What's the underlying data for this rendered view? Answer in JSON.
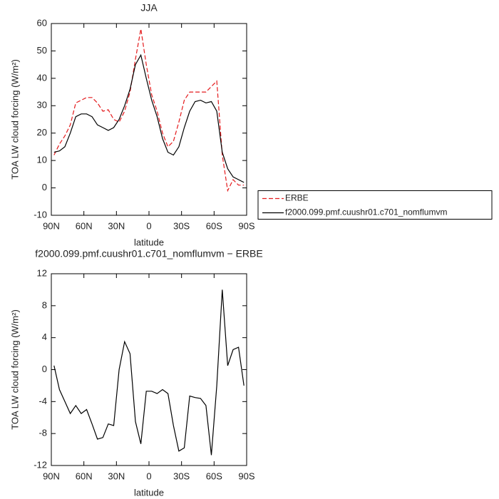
{
  "chart_data": [
    {
      "type": "line",
      "title": "JJA",
      "xlabel": "latitude",
      "ylabel": "TOA LW cloud forcing (W/m²)",
      "x": [
        87.5,
        82.5,
        77.5,
        72.5,
        67.5,
        62.5,
        57.5,
        52.5,
        47.5,
        42.5,
        37.5,
        32.5,
        27.5,
        22.5,
        17.5,
        12.5,
        7.5,
        2.5,
        -2.5,
        -7.5,
        -12.5,
        -17.5,
        -22.5,
        -27.5,
        -32.5,
        -37.5,
        -42.5,
        -47.5,
        -52.5,
        -57.5,
        -62.5,
        -67.5,
        -72.5,
        -77.5,
        -82.5,
        -87.5
      ],
      "series": [
        {
          "name": "ERBE",
          "color": "#e41a1c",
          "line_style": "dashed",
          "values": [
            12,
            16,
            19,
            23,
            31,
            32,
            33,
            33,
            31,
            28,
            28.5,
            25,
            24,
            28,
            35,
            47,
            58,
            45,
            34,
            28,
            20,
            15,
            17,
            24,
            32,
            35,
            35,
            35,
            35,
            37,
            39,
            12,
            -1,
            3,
            1,
            1
          ]
        },
        {
          "name": "f2000.099.pmf.cuushr01.c701_nomflumvm",
          "color": "#000000",
          "line_style": "solid",
          "values": [
            13,
            13.5,
            15,
            20,
            26,
            27,
            27,
            26,
            23,
            22,
            21,
            22,
            25,
            30,
            36,
            45,
            48.5,
            40,
            32,
            26,
            18,
            13,
            12,
            15,
            22,
            28,
            31.5,
            32,
            31,
            31.5,
            28,
            13,
            7,
            4,
            3,
            2
          ]
        }
      ],
      "xlim": [
        90,
        -90
      ],
      "xticks": [
        {
          "value": 90,
          "label": "90N"
        },
        {
          "value": 60,
          "label": "60N"
        },
        {
          "value": 30,
          "label": "30N"
        },
        0,
        {
          "value": -30,
          "label": "30S"
        },
        {
          "value": -60,
          "label": "60S"
        },
        {
          "value": -90,
          "label": "90S"
        }
      ],
      "ylim": [
        -10,
        60
      ],
      "yticks": [
        -10,
        0,
        10,
        20,
        30,
        40,
        50,
        60
      ],
      "legend": "right"
    },
    {
      "type": "line",
      "title": "f2000.099.pmf.cuushr01.c701_nomflumvm − ERBE",
      "xlabel": "latitude",
      "ylabel": "TOA LW cloud forcing (W/m²)",
      "x": [
        87.5,
        82.5,
        77.5,
        72.5,
        67.5,
        62.5,
        57.5,
        52.5,
        47.5,
        42.5,
        37.5,
        32.5,
        27.5,
        22.5,
        17.5,
        12.5,
        7.5,
        2.5,
        -2.5,
        -7.5,
        -12.5,
        -17.5,
        -22.5,
        -27.5,
        -32.5,
        -37.5,
        -42.5,
        -47.5,
        -52.5,
        -57.5,
        -62.5,
        -67.5,
        -72.5,
        -77.5,
        -82.5,
        -87.5
      ],
      "series": [
        {
          "color": "#000000",
          "line_style": "solid",
          "values": [
            0.5,
            -2.5,
            -4,
            -5.5,
            -4.5,
            -5.5,
            -5,
            -6.8,
            -8.7,
            -8.5,
            -6.8,
            -7,
            0,
            3.5,
            2,
            -6.5,
            -9.3,
            -2.7,
            -2.7,
            -3,
            -2.5,
            -3,
            -7,
            -10.2,
            -9.8,
            -3.3,
            -3.5,
            -3.6,
            -4.5,
            -10.7,
            -2,
            10,
            0.5,
            2.5,
            2.8,
            -2
          ]
        }
      ],
      "xlim": [
        90,
        -90
      ],
      "xticks": [
        {
          "value": 90,
          "label": "90N"
        },
        {
          "value": 60,
          "label": "60N"
        },
        {
          "value": 30,
          "label": "30N"
        },
        0,
        {
          "value": -30,
          "label": "30S"
        },
        {
          "value": -60,
          "label": "60S"
        },
        {
          "value": -90,
          "label": "90S"
        }
      ],
      "ylim": [
        -12,
        12
      ],
      "yticks": [
        -12,
        -8,
        -4,
        0,
        4,
        8,
        12
      ]
    }
  ]
}
